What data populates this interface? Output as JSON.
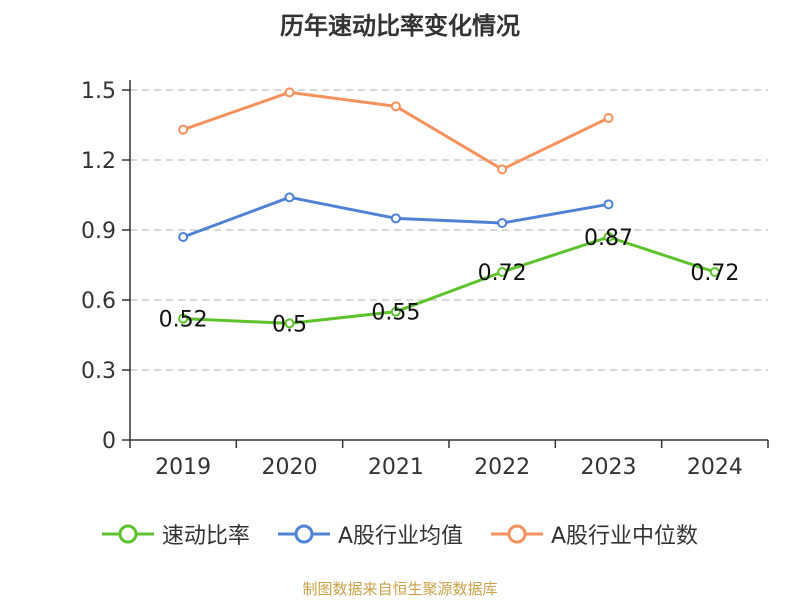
{
  "title": "历年速动比率变化情况",
  "footer": "制图数据来自恒生聚源数据库",
  "colors": {
    "速动比率": "#5ec22c",
    "A股行业均值": "#4f82d4",
    "A股行业中位数": "#f5915c",
    "axis": "#333333",
    "grid": "#cccccc"
  },
  "chart_data": {
    "type": "line",
    "title": "历年速动比率变化情况",
    "categories": [
      "2019",
      "2020",
      "2021",
      "2022",
      "2023",
      "2024"
    ],
    "ylim": [
      0,
      1.5
    ],
    "yticks": [
      "0",
      "0.3",
      "0.6",
      "0.9",
      "1.2",
      "1.5"
    ],
    "grid": true,
    "legend_position": "bottom",
    "series": [
      {
        "name": "速动比率",
        "values": [
          0.52,
          0.5,
          0.55,
          0.72,
          0.87,
          0.72
        ],
        "labels": [
          "0.52",
          "0.5",
          "0.55",
          "0.72",
          "0.87",
          "0.72"
        ]
      },
      {
        "name": "A股行业均值",
        "values": [
          0.87,
          1.04,
          0.95,
          0.93,
          1.01,
          null
        ]
      },
      {
        "name": "A股行业中位数",
        "values": [
          1.33,
          1.49,
          1.43,
          1.16,
          1.38,
          null
        ]
      }
    ]
  }
}
